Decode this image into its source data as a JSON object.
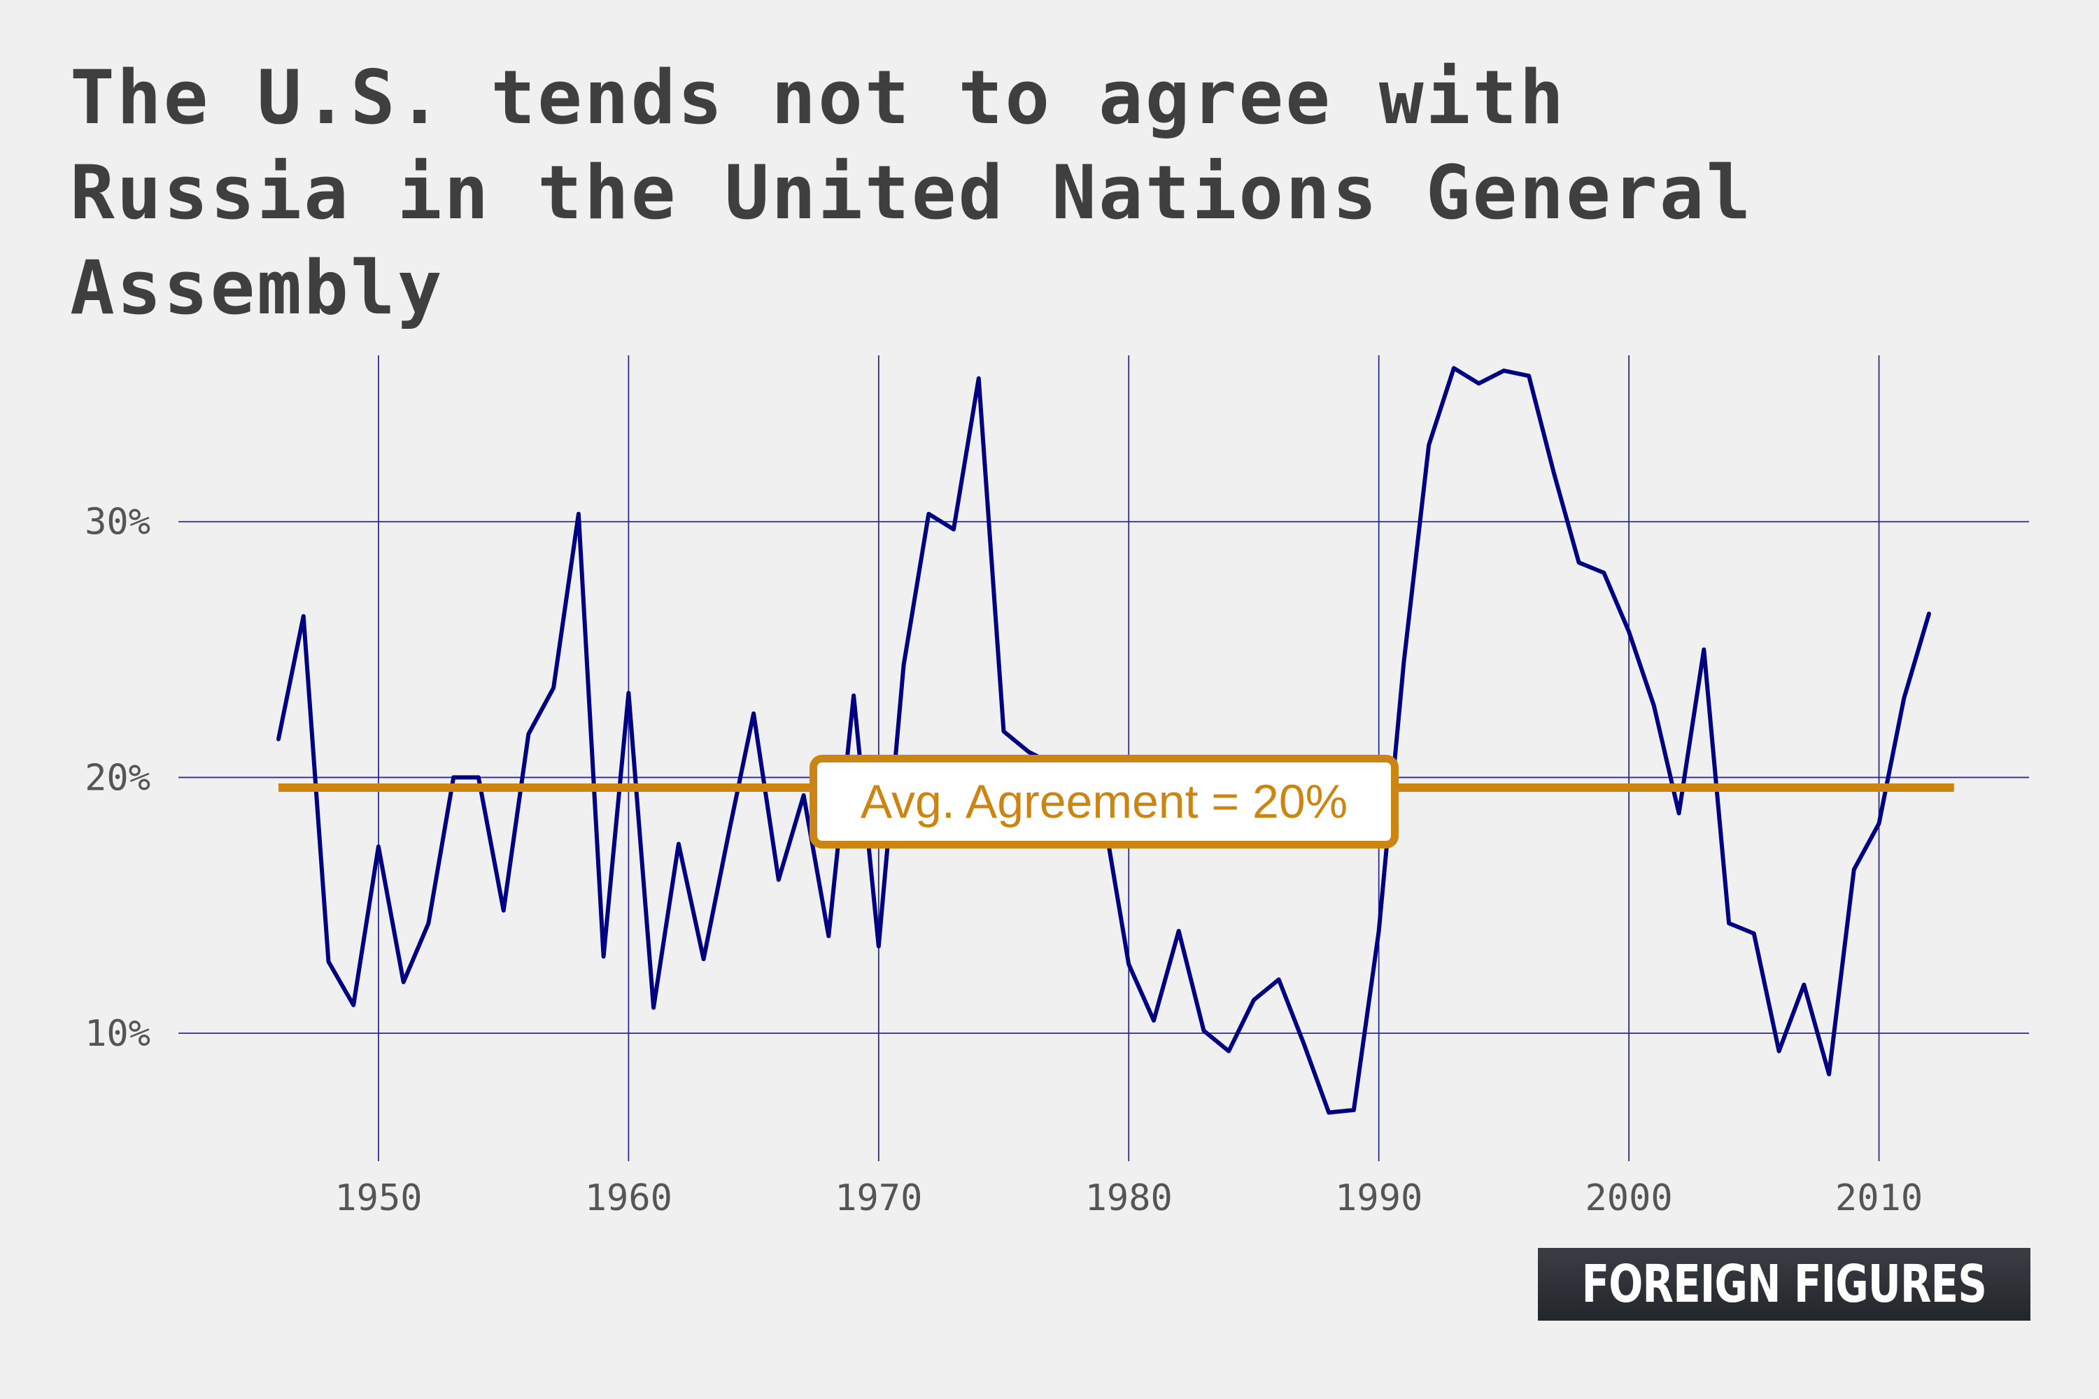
{
  "title": "The U.S. tends not to agree with Russia in the United Nations General Assembly",
  "brand": "FOREIGN FIGURES",
  "colors": {
    "background": "#f0f0f0",
    "line": "#000080",
    "grid": "#2a2a9a",
    "average": "#cc8512",
    "title": "#3f3f3f",
    "brand_bg": "#2b2e33"
  },
  "chart_data": {
    "type": "line",
    "title": "The U.S. tends not to agree with Russia in the United Nations General Assembly",
    "xlabel": "",
    "ylabel": "",
    "xlim": [
      1942,
      2016
    ],
    "ylim": [
      5,
      36.5
    ],
    "x_ticks": [
      1950,
      1960,
      1970,
      1980,
      1990,
      2000,
      2010
    ],
    "y_ticks": [
      10,
      20,
      30
    ],
    "y_tick_labels": [
      "10%",
      "20%",
      "30%"
    ],
    "grid": true,
    "series": [
      {
        "x": [
          1946,
          1947,
          1948,
          1949,
          1950,
          1951,
          1952,
          1953,
          1954,
          1955,
          1956,
          1957,
          1958,
          1959,
          1960,
          1961,
          1962,
          1963,
          1964,
          1965,
          1966,
          1967,
          1968,
          1969,
          1970,
          1971,
          1972,
          1973,
          1974,
          1975,
          1976,
          1977,
          1978,
          1979,
          1980,
          1981,
          1982,
          1983,
          1984,
          1985,
          1986,
          1987,
          1988,
          1989,
          1990,
          1991,
          1992,
          1993,
          1994,
          1995,
          1996,
          1997,
          1998,
          1999,
          2000,
          2001,
          2002,
          2003,
          2004,
          2005,
          2006,
          2007,
          2008,
          2009,
          2010,
          2011,
          2012
        ],
        "values": [
          21.5,
          26.3,
          12.8,
          11.1,
          17.3,
          12.0,
          14.3,
          20.0,
          20.0,
          14.8,
          21.7,
          23.5,
          30.3,
          13.0,
          23.3,
          11.0,
          17.4,
          12.9,
          17.8,
          22.5,
          16.0,
          19.3,
          13.8,
          23.2,
          13.4,
          24.4,
          30.3,
          29.7,
          35.6,
          21.8,
          21.0,
          20.5,
          20.0,
          18.5,
          12.7,
          10.5,
          14.0,
          10.1,
          9.3,
          11.3,
          12.1,
          9.6,
          6.9,
          7.0,
          14.0,
          24.5,
          33.0,
          36.0,
          35.4,
          35.9,
          35.7,
          31.9,
          28.4,
          28.0,
          25.7,
          22.8,
          18.6,
          25.0,
          14.3,
          13.9,
          9.3,
          11.9,
          8.4,
          16.4,
          18.2,
          23.1,
          26.4
        ]
      }
    ],
    "annotations": [
      {
        "label": "Avg. Agreement = 20%",
        "value": 19.6,
        "x_start": 1946,
        "x_end": 2013
      }
    ]
  }
}
